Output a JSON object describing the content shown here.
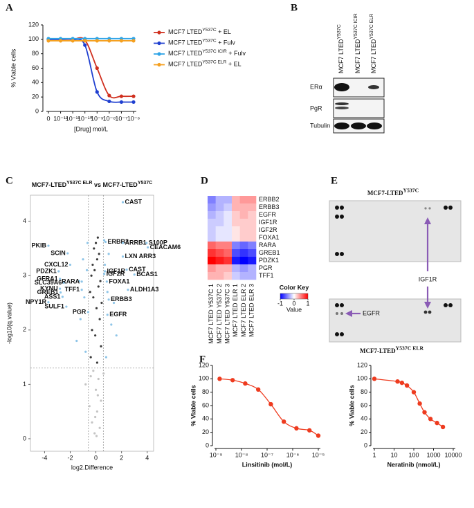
{
  "panel_labels": [
    "A",
    "B",
    "C",
    "D",
    "E",
    "F"
  ],
  "chart_data": [
    {
      "type": "line",
      "y_label": "% Viable cells",
      "x_label": "[Drug] mol/L",
      "categories": [
        "0",
        "10⁻¹²",
        "10⁻¹¹",
        "10⁻¹⁰",
        "10⁻⁹",
        "10⁻⁸",
        "10⁻⁷",
        "10⁻⁶"
      ],
      "ylim": [
        0,
        120
      ],
      "yticks": [
        0,
        20,
        40,
        60,
        80,
        100,
        120
      ],
      "series": [
        {
          "name": "MCF7 LTED",
          "name_sup": "Y537C",
          "name_suffix": " + EL",
          "color": "#d0301f",
          "values": [
            100,
            100,
            100,
            99,
            60,
            22,
            21,
            21
          ]
        },
        {
          "name": "MCF7 LTED",
          "name_sup": "Y537C",
          "name_suffix": " + Fulv",
          "color": "#1f3fd0",
          "values": [
            100,
            100,
            100,
            92,
            27,
            14,
            13,
            13
          ]
        },
        {
          "name": "MCF7 LTED",
          "name_sup": "Y537C ICIR",
          "name_suffix": " + Fulv",
          "color": "#2fa4e7",
          "values": [
            101,
            101,
            101,
            101,
            101,
            101,
            101,
            101
          ]
        },
        {
          "name": "MCF7 LTED",
          "name_sup": "Y537C ELR",
          "name_suffix": " + EL",
          "color": "#f5a020",
          "values": [
            98,
            98,
            98,
            98,
            98,
            98,
            98,
            98
          ]
        }
      ]
    },
    {
      "type": "scatter",
      "title": "MCF7-LTED",
      "title_sup": "Y537C ELR",
      "title_mid": " vs MCF7-LTED",
      "title_sup2": "Y537C",
      "x_label": "log2.Difference",
      "y_label": "-log10(q.value)",
      "xlim": [
        -5.1,
        4.5
      ],
      "ylim": [
        -0.23,
        4.48
      ],
      "xticks": [
        -4,
        -2,
        0,
        2,
        4
      ],
      "yticks": [
        0,
        1,
        2,
        3,
        4
      ],
      "thresholds": {
        "x": [
          -0.58,
          0.58
        ],
        "y": 1.3
      },
      "series": [
        {
          "color": "#c4c4c4",
          "x": [
            -0.8,
            -0.5,
            -0.3,
            -0.1,
            0,
            0.1,
            0.2,
            0.4,
            0.6,
            -0.2,
            0.3,
            -0.4,
            0.05,
            -0.05,
            0.15
          ],
          "values": [
            1.0,
            0.6,
            0.3,
            0.1,
            0.9,
            0.5,
            1.1,
            0.7,
            1.2,
            1.25,
            0.2,
            1.15,
            0.05,
            0.4,
            0.8
          ]
        },
        {
          "color": "#3a3a3a",
          "x": [
            -0.4,
            -0.3,
            -0.2,
            -0.1,
            0,
            0.1,
            0.2,
            0.3,
            0.4,
            -0.35,
            0.35,
            -0.15,
            0.15,
            0.05,
            -0.05,
            0.25,
            -0.25,
            0.45,
            -0.45,
            0.1
          ],
          "values": [
            1.5,
            2.0,
            2.6,
            3.1,
            3.6,
            3.3,
            2.8,
            2.2,
            1.7,
            3.0,
            2.9,
            3.5,
            3.7,
            2.4,
            1.9,
            3.4,
            3.2,
            2.5,
            2.7,
            1.4
          ]
        },
        {
          "color": "#8ec5e8",
          "x": [
            -1.2,
            -0.9,
            -0.7,
            0.7,
            0.9,
            1.2,
            -1.5,
            1.6,
            -0.8,
            0.8,
            -1.0,
            1.0,
            -0.65,
            0.65,
            1.4,
            -1.3
          ],
          "values": [
            2.2,
            2.6,
            3.1,
            3.2,
            2.7,
            2.1,
            1.8,
            1.9,
            1.6,
            1.5,
            3.3,
            3.4,
            3.6,
            3.65,
            2.5,
            2.9
          ]
        },
        {
          "color": "#8ec5e8",
          "labels": [
            "CAST",
            "PKIB",
            "SCIN",
            "CXCL12",
            "PDZK1",
            "GFRA1",
            "SLC39A6",
            "RARA",
            "KYNU",
            "TFF1",
            "GREB1",
            "ASS1",
            "NPY1R",
            "SULF1",
            "PGR",
            "ERBB3",
            "ARRB1",
            "S100P",
            "CEACAM6",
            "LXN ARR3",
            "IGF1R",
            "IGF2R",
            "CAST",
            "BCAS1",
            "FOXA1",
            "ALDH1A3",
            "ERBB3",
            "EGFR"
          ],
          "x": [
            2.1,
            -3.7,
            -2.2,
            -2.0,
            -2.9,
            -2.8,
            -2.5,
            -1.1,
            -2.8,
            -1.1,
            -2.75,
            -2.6,
            -3.7,
            -2.3,
            -0.6,
            0.75,
            2.1,
            3.95,
            4.05,
            2.1,
            0.7,
            0.65,
            2.4,
            3.0,
            0.85,
            2.5,
            1.0,
            0.9
          ],
          "values": [
            4.35,
            3.55,
            3.41,
            3.2,
            3.08,
            2.94,
            2.87,
            2.89,
            2.76,
            2.74,
            2.69,
            2.61,
            2.51,
            2.43,
            2.33,
            3.62,
            3.6,
            3.6,
            3.52,
            3.35,
            3.08,
            3.03,
            3.11,
            3.02,
            2.89,
            2.74,
            2.56,
            2.28
          ]
        }
      ]
    },
    {
      "type": "heatmap",
      "rows": [
        "ERBB2",
        "ERBB3",
        "EGFR",
        "IGF1R",
        "IGF2R",
        "FOXA1",
        "RARA",
        "GREB1",
        "PDZK1",
        "PGR",
        "TFF1"
      ],
      "columns": [
        "MCF7 LTED Y537C 1",
        "MCF7 LTED Y537C 2",
        "MCF7 LTED Y537C 3",
        "MCF7 LTED ELR 1",
        "MCF7 LTED ELR 2",
        "MCF7 LTED ELR 3"
      ],
      "values": [
        [
          -0.5,
          -0.3,
          -0.3,
          0.3,
          0.4,
          0.4
        ],
        [
          -0.4,
          -0.3,
          -0.2,
          0.3,
          0.3,
          0.3
        ],
        [
          -0.3,
          -0.2,
          -0.1,
          0.2,
          0.3,
          0.2
        ],
        [
          -0.2,
          -0.2,
          -0.1,
          0.2,
          0.2,
          0.2
        ],
        [
          -0.2,
          -0.1,
          -0.1,
          0.1,
          0.2,
          0.2
        ],
        [
          -0.2,
          -0.1,
          -0.1,
          0.1,
          0.2,
          0.2
        ],
        [
          0.6,
          0.5,
          0.5,
          -0.5,
          -0.6,
          -0.5
        ],
        [
          0.8,
          0.7,
          0.6,
          -0.7,
          -0.8,
          -0.7
        ],
        [
          1.0,
          0.9,
          0.8,
          -0.9,
          -1.0,
          -0.9
        ],
        [
          0.4,
          0.3,
          0.3,
          -0.3,
          -0.4,
          -0.3
        ],
        [
          0.3,
          0.3,
          0.2,
          -0.2,
          -0.3,
          -0.3
        ]
      ],
      "zlim": [
        -1,
        1
      ],
      "color_key": {
        "title": "Color Key",
        "label": "Value",
        "ticks": [
          -1,
          0,
          1
        ],
        "colors": [
          "#0000ff",
          "#ffffff",
          "#ff0000"
        ]
      }
    },
    {
      "type": "line",
      "markers": true,
      "xlog": true,
      "color": "#ee3b1f",
      "x_label": "Linsitinib (mol/L)",
      "y_label": "% Viable cells",
      "x": [
        1.4e-09,
        4.5e-09,
        1.4e-08,
        4.5e-08,
        1.4e-07,
        4.5e-07,
        1.4e-06,
        4.5e-06,
        1e-05
      ],
      "values": [
        100,
        98,
        93,
        84,
        62,
        36,
        26,
        23,
        15
      ],
      "xlim": [
        1e-09,
        1e-05
      ],
      "ylim": [
        0,
        120
      ],
      "yticks": [
        0,
        20,
        40,
        60,
        80,
        100,
        120
      ],
      "xticks": [
        {
          "value": 1e-09,
          "label": "10⁻⁹"
        },
        {
          "value": 1e-08,
          "label": "10⁻⁸"
        },
        {
          "value": 1e-07,
          "label": "10⁻⁷"
        },
        {
          "value": 1e-06,
          "label": "10⁻⁶"
        },
        {
          "value": 1e-05,
          "label": "10⁻⁵"
        }
      ]
    },
    {
      "type": "line",
      "markers": true,
      "xlog": true,
      "color": "#ee3b1f",
      "x_label": "Neratinib (nmol/L)",
      "y_label": "% Viable cells",
      "x": [
        1,
        15,
        25,
        45,
        100,
        200,
        350,
        700,
        1500,
        3000
      ],
      "values": [
        100,
        96,
        94,
        90,
        80,
        63,
        50,
        40,
        34,
        28
      ],
      "xlim": [
        1,
        10000
      ],
      "ylim": [
        0,
        120
      ],
      "yticks": [
        0,
        20,
        40,
        60,
        80,
        100,
        120
      ],
      "xticks": [
        1,
        10,
        100,
        1000,
        10000
      ]
    }
  ],
  "blot": {
    "columns": [
      {
        "text": "MCF7 LTED",
        "sup": "Y537C"
      },
      {
        "text": "MCF7 LTED",
        "sup": "Y537C ICIR"
      },
      {
        "text": "MCF7 LTED",
        "sup": "Y537C ELR"
      }
    ],
    "rows": [
      "ERα",
      "PgR",
      "Tubulin"
    ]
  },
  "array": {
    "top_title": {
      "text": "MCF7-LTED",
      "sup": "Y537C"
    },
    "bottom_title": {
      "text": "MCF7-LTED",
      "sup": "Y537C ELR"
    },
    "labels": [
      "IGF1R",
      "EGFR"
    ]
  }
}
